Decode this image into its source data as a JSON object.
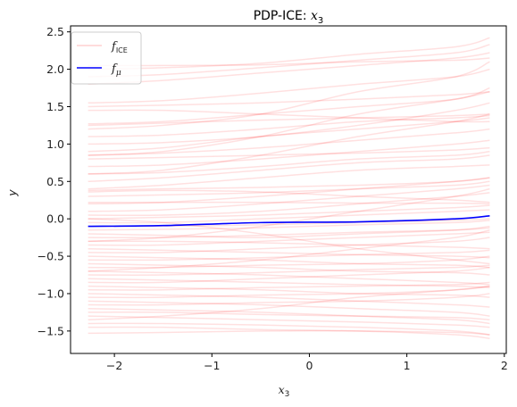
{
  "chart_data": {
    "type": "line",
    "title": "PDP-ICE: x₃",
    "title_plain": "PDP-ICE: ",
    "title_var": "x",
    "title_sub": "3",
    "xlabel_var": "x",
    "xlabel_sub": "3",
    "ylabel": "y",
    "xlim": [
      -2.45,
      2.02
    ],
    "ylim": [
      -1.8,
      2.58
    ],
    "xticks": [
      -2,
      -1,
      0,
      1,
      2
    ],
    "xtick_labels": [
      "−2",
      "−1",
      "0",
      "1",
      "2"
    ],
    "yticks": [
      -1.5,
      -1.0,
      -0.5,
      0.0,
      0.5,
      1.0,
      1.5,
      2.0,
      2.5
    ],
    "ytick_labels": [
      "−1.5",
      "−1.0",
      "−0.5",
      "0.0",
      "0.5",
      "1.0",
      "1.5",
      "2.0",
      "2.5"
    ],
    "grid": false,
    "legend_position": "top-left",
    "legend": [
      {
        "main": "f",
        "sub": "ICE"
      },
      {
        "main": "f",
        "sub": "μ"
      }
    ],
    "x": [
      -2.27,
      -1.5,
      -0.5,
      0.5,
      1.5,
      1.85
    ],
    "pdp_series": {
      "name": "f_μ",
      "color": "#0000ff",
      "values": [
        -0.1,
        -0.09,
        -0.05,
        -0.04,
        0.0,
        0.04
      ]
    },
    "ice_color": "#ff0000",
    "ice_opacity": 0.12,
    "ice_series": [
      [
        2.0,
        2.02,
        2.08,
        2.2,
        2.3,
        2.42
      ],
      [
        1.9,
        1.93,
        2.02,
        2.12,
        2.22,
        2.33
      ],
      [
        1.8,
        1.85,
        1.95,
        2.05,
        2.15,
        2.22
      ],
      [
        2.05,
        2.05,
        2.06,
        2.1,
        2.12,
        2.15
      ],
      [
        1.55,
        1.58,
        1.68,
        1.8,
        1.9,
        2.0
      ],
      [
        1.5,
        1.52,
        1.55,
        1.6,
        1.66,
        1.7
      ],
      [
        1.27,
        1.3,
        1.4,
        1.5,
        1.6,
        1.75
      ],
      [
        1.25,
        1.28,
        1.32,
        1.35,
        1.38,
        1.4
      ],
      [
        1.2,
        1.25,
        1.4,
        1.7,
        1.9,
        2.1
      ],
      [
        1.1,
        1.12,
        1.2,
        1.3,
        1.35,
        1.38
      ],
      [
        1.0,
        1.02,
        1.1,
        1.25,
        1.45,
        1.55
      ],
      [
        0.9,
        0.95,
        1.1,
        1.2,
        1.3,
        1.35
      ],
      [
        0.85,
        0.88,
        0.95,
        1.05,
        1.15,
        1.2
      ],
      [
        0.8,
        0.82,
        0.85,
        0.88,
        0.92,
        0.95
      ],
      [
        0.7,
        0.72,
        0.8,
        0.9,
        1.0,
        1.05
      ],
      [
        0.6,
        0.62,
        0.7,
        0.8,
        0.85,
        0.9
      ],
      [
        0.5,
        0.55,
        0.65,
        0.75,
        0.8,
        0.85
      ],
      [
        0.4,
        0.45,
        0.55,
        0.65,
        0.7,
        0.72
      ],
      [
        0.38,
        0.4,
        0.42,
        0.45,
        0.5,
        0.55
      ],
      [
        0.36,
        0.38,
        0.36,
        0.3,
        0.25,
        0.22
      ],
      [
        0.3,
        0.32,
        0.35,
        0.4,
        0.45,
        0.5
      ],
      [
        0.22,
        0.22,
        0.22,
        0.21,
        0.21,
        0.2
      ],
      [
        0.2,
        0.22,
        0.3,
        0.4,
        0.5,
        0.55
      ],
      [
        0.1,
        0.12,
        0.2,
        0.3,
        0.4,
        0.45
      ],
      [
        0.05,
        0.05,
        0.1,
        0.2,
        0.3,
        0.35
      ],
      [
        0.0,
        0.02,
        0.05,
        0.1,
        0.15,
        0.18
      ],
      [
        -0.05,
        -0.05,
        0.0,
        0.05,
        0.1,
        0.12
      ],
      [
        -0.1,
        -0.1,
        -0.08,
        -0.05,
        -0.02,
        0.0
      ],
      [
        -0.15,
        -0.14,
        -0.12,
        -0.08,
        -0.05,
        -0.02
      ],
      [
        -0.2,
        -0.22,
        -0.25,
        -0.2,
        -0.15,
        -0.1
      ],
      [
        -0.25,
        -0.25,
        -0.22,
        -0.18,
        -0.15,
        -0.12
      ],
      [
        -0.3,
        -0.3,
        -0.32,
        -0.35,
        -0.38,
        -0.4
      ],
      [
        -0.35,
        -0.35,
        -0.3,
        -0.25,
        -0.2,
        -0.18
      ],
      [
        -0.4,
        -0.42,
        -0.45,
        -0.48,
        -0.5,
        -0.52
      ],
      [
        -0.45,
        -0.45,
        -0.4,
        -0.35,
        -0.3,
        -0.25
      ],
      [
        -0.5,
        -0.52,
        -0.55,
        -0.6,
        -0.62,
        -0.65
      ],
      [
        -0.55,
        -0.55,
        -0.52,
        -0.48,
        -0.45,
        -0.42
      ],
      [
        -0.6,
        -0.62,
        -0.65,
        -0.7,
        -0.72,
        -0.75
      ],
      [
        -0.65,
        -0.65,
        -0.62,
        -0.6,
        -0.55,
        -0.5
      ],
      [
        -0.7,
        -0.72,
        -0.75,
        -0.8,
        -0.85,
        -0.88
      ],
      [
        -0.75,
        -0.75,
        -0.72,
        -0.68,
        -0.65,
        -0.62
      ],
      [
        -0.8,
        -0.82,
        -0.85,
        -0.88,
        -0.9,
        -0.92
      ],
      [
        -0.85,
        -0.85,
        -0.8,
        -0.75,
        -0.7,
        -0.65
      ],
      [
        -0.9,
        -0.92,
        -0.95,
        -1.0,
        -1.02,
        -1.05
      ],
      [
        -0.95,
        -0.95,
        -0.92,
        -0.9,
        -0.88,
        -0.85
      ],
      [
        -1.0,
        -1.02,
        -1.05,
        -1.1,
        -1.15,
        -1.18
      ],
      [
        -1.05,
        -1.05,
        -1.02,
        -1.0,
        -0.95,
        -0.9
      ],
      [
        -1.1,
        -1.12,
        -1.15,
        -1.2,
        -1.25,
        -1.3
      ],
      [
        -1.15,
        -1.15,
        -1.12,
        -1.1,
        -1.05,
        -1.0
      ],
      [
        -1.2,
        -1.22,
        -1.25,
        -1.3,
        -1.35,
        -1.4
      ],
      [
        -1.25,
        -1.25,
        -1.28,
        -1.3,
        -1.32,
        -1.35
      ],
      [
        -1.3,
        -1.32,
        -1.35,
        -1.38,
        -1.42,
        -1.45
      ],
      [
        -1.4,
        -1.4,
        -1.42,
        -1.45,
        -1.5,
        -1.55
      ],
      [
        -1.45,
        -1.45,
        -1.48,
        -1.5,
        -1.55,
        -1.6
      ],
      [
        -1.53,
        -1.52,
        -1.5,
        -1.5,
        -1.52,
        -1.55
      ],
      [
        0.85,
        0.9,
        1.1,
        1.4,
        1.6,
        1.7
      ],
      [
        0.6,
        0.65,
        0.85,
        1.1,
        1.3,
        1.4
      ],
      [
        -0.3,
        -0.25,
        -0.1,
        0.1,
        0.3,
        0.4
      ],
      [
        -0.7,
        -0.65,
        -0.55,
        -0.4,
        -0.25,
        -0.15
      ],
      [
        0.0,
        -0.05,
        -0.2,
        -0.4,
        -0.55,
        -0.6
      ],
      [
        1.45,
        1.45,
        1.4,
        1.35,
        1.3,
        1.3
      ],
      [
        -1.35,
        -1.3,
        -1.2,
        -1.05,
        -0.95,
        -0.9
      ]
    ]
  }
}
